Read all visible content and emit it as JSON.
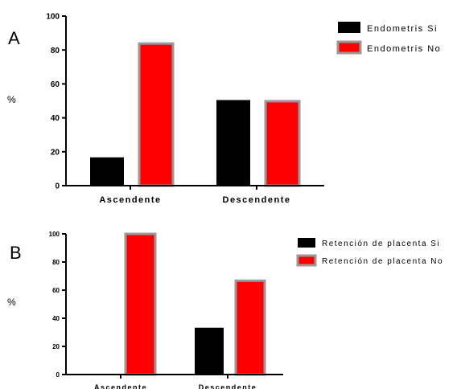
{
  "chart_data": [
    {
      "type": "bar",
      "panel_label": "A",
      "ylabel": "%",
      "ylim": [
        0,
        100
      ],
      "yticks": [
        0,
        20,
        40,
        60,
        80,
        100
      ],
      "categories": [
        "Ascendente",
        "Descendente"
      ],
      "series": [
        {
          "name": "Endometris Si",
          "values": [
            16.7,
            50.5
          ],
          "color": "#000000",
          "stroke": "#000000"
        },
        {
          "name": "Endometris No",
          "values": [
            83.8,
            49.8
          ],
          "color": "#ff0000",
          "stroke": "#999999"
        }
      ],
      "legend_position": "top-right"
    },
    {
      "type": "bar",
      "panel_label": "B",
      "ylabel": "%",
      "ylim": [
        0,
        100
      ],
      "yticks": [
        0,
        20,
        40,
        60,
        80,
        100
      ],
      "categories": [
        "Ascendente",
        "Descendente"
      ],
      "series": [
        {
          "name": "Retención de placenta Si",
          "values": [
            0,
            33.3
          ],
          "color": "#000000",
          "stroke": "#000000"
        },
        {
          "name": "Retención de placenta No",
          "values": [
            100,
            66.7
          ],
          "color": "#ff0000",
          "stroke": "#999999"
        }
      ],
      "legend_position": "top-right"
    }
  ]
}
